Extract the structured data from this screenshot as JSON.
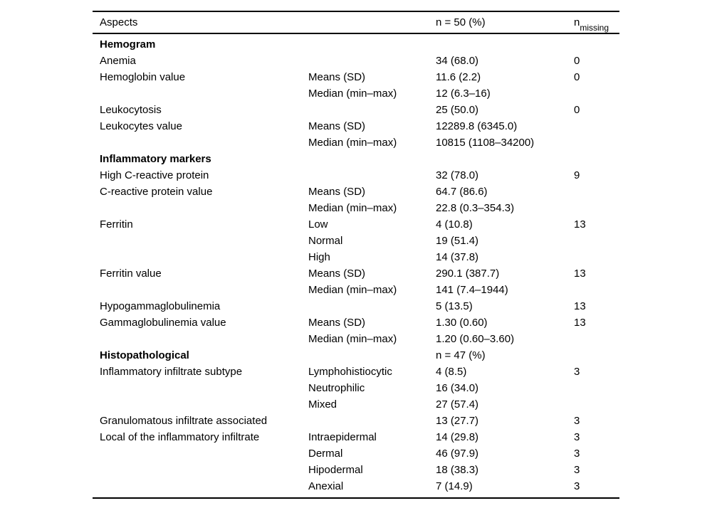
{
  "table": {
    "header": {
      "aspects": "Aspects",
      "n_col": "n = 50 (%)",
      "n_missing_base": "n",
      "n_missing_sub": "missing"
    },
    "rows": [
      {
        "type": "section",
        "label": "Hemogram",
        "sub": "",
        "value": "",
        "missing": ""
      },
      {
        "type": "data",
        "label": "Anemia",
        "sub": "",
        "value": "34 (68.0)",
        "missing": "0"
      },
      {
        "type": "data",
        "label": "Hemoglobin value",
        "sub": "Means (SD)",
        "value": "11.6 (2.2)",
        "missing": "0"
      },
      {
        "type": "data",
        "label": "",
        "sub": "Median (min–max)",
        "value": "12 (6.3–16)",
        "missing": ""
      },
      {
        "type": "data",
        "label": "Leukocytosis",
        "sub": "",
        "value": "25 (50.0)",
        "missing": "0"
      },
      {
        "type": "data",
        "label": "Leukocytes value",
        "sub": "Means (SD)",
        "value": "12289.8 (6345.0)",
        "missing": ""
      },
      {
        "type": "data",
        "label": "",
        "sub": "Median (min–max)",
        "value": "10815 (1108–34200)",
        "missing": ""
      },
      {
        "type": "section",
        "label": "Inflammatory markers",
        "sub": "",
        "value": "",
        "missing": ""
      },
      {
        "type": "data",
        "label": "High C-reactive protein",
        "sub": "",
        "value": "32 (78.0)",
        "missing": "9"
      },
      {
        "type": "data",
        "label": "C-reactive protein value",
        "sub": "Means (SD)",
        "value": "64.7 (86.6)",
        "missing": ""
      },
      {
        "type": "data",
        "label": "",
        "sub": "Median (min–max)",
        "value": "22.8 (0.3–354.3)",
        "missing": ""
      },
      {
        "type": "data",
        "label": "Ferritin",
        "sub": "Low",
        "value": "4 (10.8)",
        "missing": "13"
      },
      {
        "type": "data",
        "label": "",
        "sub": "Normal",
        "value": "19 (51.4)",
        "missing": ""
      },
      {
        "type": "data",
        "label": "",
        "sub": "High",
        "value": "14 (37.8)",
        "missing": ""
      },
      {
        "type": "data",
        "label": "Ferritin value",
        "sub": "Means (SD)",
        "value": "290.1 (387.7)",
        "missing": "13"
      },
      {
        "type": "data",
        "label": "",
        "sub": "Median (min–max)",
        "value": "141 (7.4–1944)",
        "missing": ""
      },
      {
        "type": "data",
        "label": "Hypogammaglobulinemia",
        "sub": "",
        "value": "5 (13.5)",
        "missing": "13"
      },
      {
        "type": "data",
        "label": "Gammaglobulinemia value",
        "sub": "Means (SD)",
        "value": "1.30 (0.60)",
        "missing": "13"
      },
      {
        "type": "data",
        "label": "",
        "sub": "Median (min–max)",
        "value": "1.20 (0.60–3.60)",
        "missing": ""
      },
      {
        "type": "section",
        "label": "Histopathological",
        "sub": "",
        "value": "n = 47 (%)",
        "missing": ""
      },
      {
        "type": "data",
        "label": "Inflammatory infiltrate subtype",
        "sub": "Lymphohistiocytic",
        "value": "4 (8.5)",
        "missing": "3"
      },
      {
        "type": "data",
        "label": "",
        "sub": "Neutrophilic",
        "value": "16 (34.0)",
        "missing": ""
      },
      {
        "type": "data",
        "label": "",
        "sub": "Mixed",
        "value": "27 (57.4)",
        "missing": ""
      },
      {
        "type": "data",
        "label": "Granulomatous infiltrate associated",
        "sub": "",
        "value": "13 (27.7)",
        "missing": "3"
      },
      {
        "type": "data",
        "label": "Local of the inflammatory infiltrate",
        "sub": "Intraepidermal",
        "value": "14 (29.8)",
        "missing": "3"
      },
      {
        "type": "data",
        "label": "",
        "sub": "Dermal",
        "value": "46 (97.9)",
        "missing": "3"
      },
      {
        "type": "data",
        "label": "",
        "sub": "Hipodermal",
        "value": "18 (38.3)",
        "missing": "3"
      },
      {
        "type": "data",
        "label": "",
        "sub": "Anexial",
        "value": "7 (14.9)",
        "missing": "3"
      }
    ]
  }
}
